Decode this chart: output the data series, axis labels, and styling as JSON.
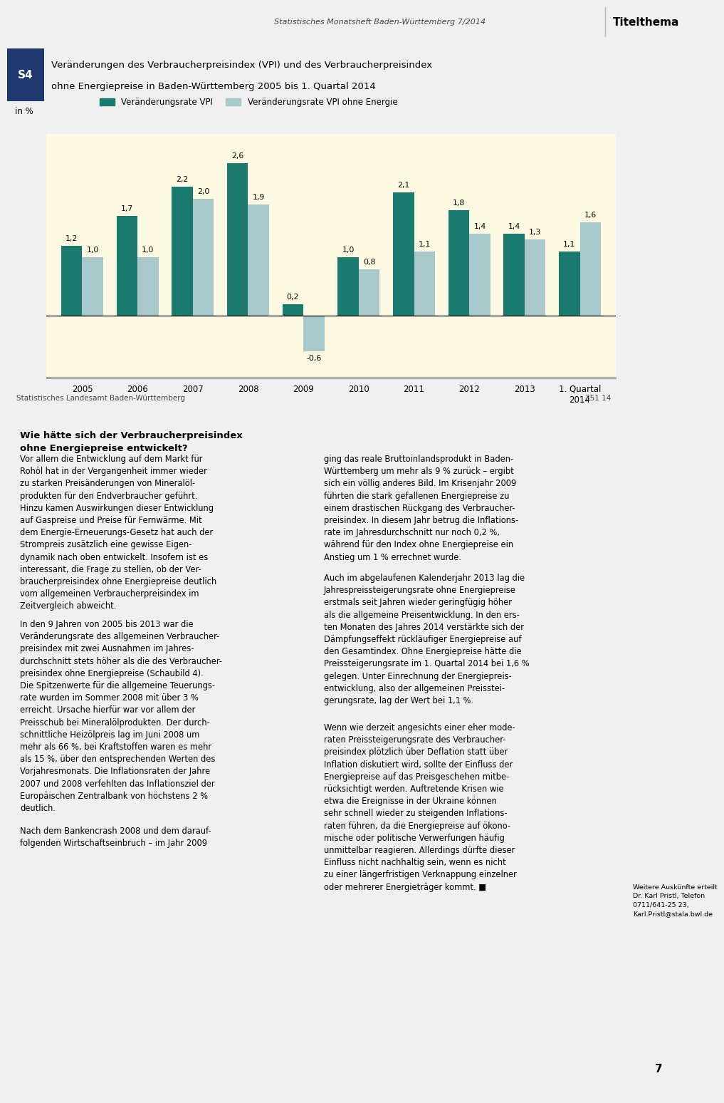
{
  "header_text": "Statistisches Monatsheft Baden-Württemberg 7/2014",
  "titelthema": "Titelthema",
  "s4_label": "S4",
  "title_line1": "Veränderungen des Verbraucherpreisindex (VPI) und des Verbraucherpreisindex",
  "title_line2": "ohne Energiepreise in Baden-Württemberg 2005 bis 1. Quartal 2014",
  "ylabel": "in %",
  "legend1": "Veränderungsrate VPI",
  "legend2": "Veränderungsrate VPI ohne Energie",
  "categories": [
    "2005",
    "2006",
    "2007",
    "2008",
    "2009",
    "2010",
    "2011",
    "2012",
    "2013",
    "1. Quartal\n2014"
  ],
  "vpi_values": [
    1.2,
    1.7,
    2.2,
    2.6,
    0.2,
    1.0,
    2.1,
    1.8,
    1.4,
    1.1
  ],
  "vpi_ohne_values": [
    1.0,
    1.0,
    2.0,
    1.9,
    -0.6,
    0.8,
    1.1,
    1.4,
    1.3,
    1.6
  ],
  "vpi_color": "#1a7a6e",
  "vpi_ohne_color": "#a8c8cc",
  "bg_cream": "#fdf9e3",
  "bg_white": "#ffffff",
  "bg_gray": "#f0f0f0",
  "s4_bg": "#1e3a6e",
  "blue_line": "#1e3a6e",
  "footer_left": "Statistisches Landesamt Baden-Württemberg",
  "footer_right": "351 14",
  "page_number": "7",
  "sidebar_text": "Weitere Auskünfte erteilt\nDr. Karl Pristl, Telefon\n0711/641-25 23,\nKarl.Pristl@stala.bwl.de",
  "ylim": [
    -1.0,
    3.0
  ]
}
